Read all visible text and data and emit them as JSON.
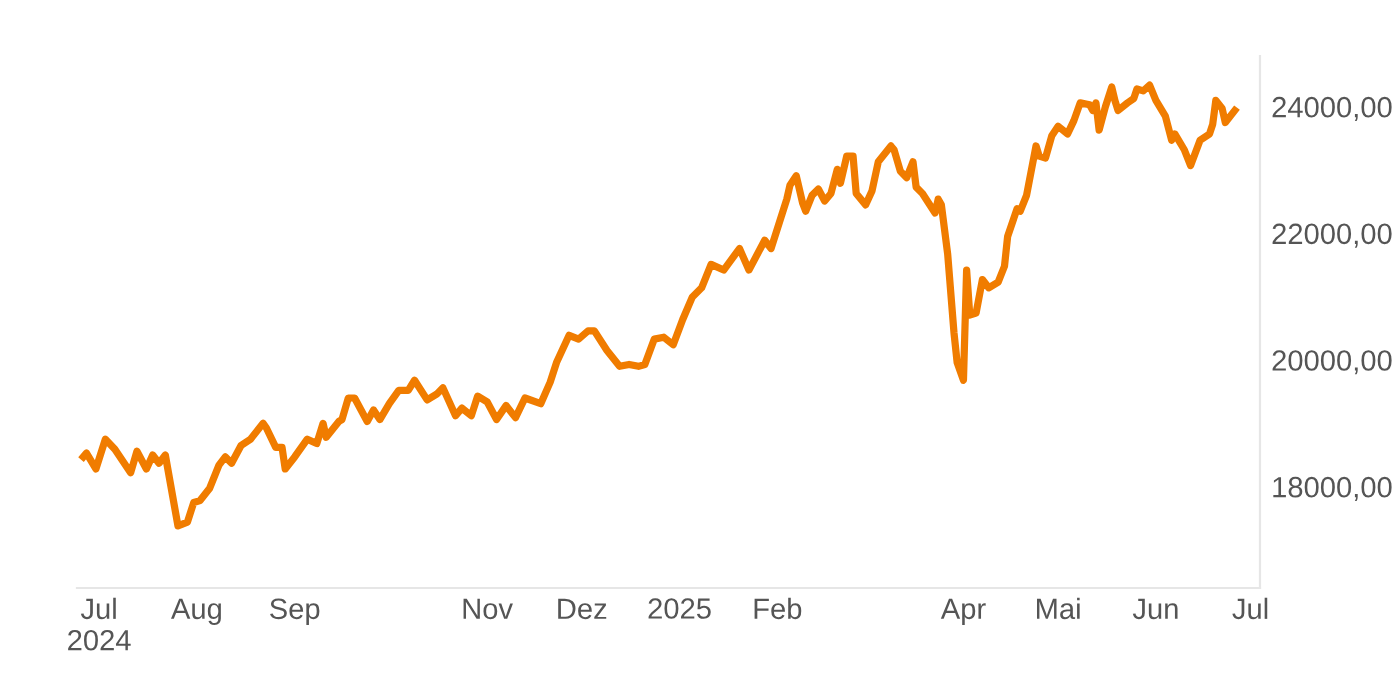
{
  "chart_data": {
    "type": "line",
    "color": "#f07c00",
    "grid": false,
    "legend": false,
    "marker": "none",
    "line_style": "solid",
    "xlim": [
      "2024-06-24",
      "2025-07-04"
    ],
    "ylim": [
      16400,
      24800
    ],
    "xticks": [
      {
        "value": "2024-07-01",
        "label": "Jul\n2024"
      },
      {
        "value": "2024-08-01",
        "label": "Aug"
      },
      {
        "value": "2024-09-01",
        "label": "Sep"
      },
      {
        "value": "2024-11-01",
        "label": "Nov"
      },
      {
        "value": "2024-12-01",
        "label": "Dez"
      },
      {
        "value": "2025-01-01",
        "label": "2025"
      },
      {
        "value": "2025-02-01",
        "label": "Feb"
      },
      {
        "value": "2025-04-01",
        "label": "Apr"
      },
      {
        "value": "2025-05-01",
        "label": "Mai"
      },
      {
        "value": "2025-06-01",
        "label": "Jun"
      },
      {
        "value": "2025-07-01",
        "label": "Jul"
      }
    ],
    "yticks": [
      {
        "value": 18000,
        "label": "18000,00"
      },
      {
        "value": 20000,
        "label": "20000,00"
      },
      {
        "value": 22000,
        "label": "22000,00"
      },
      {
        "value": 24000,
        "label": "24000,00"
      }
    ],
    "x": [
      "2024-06-26",
      "2024-06-27",
      "2024-06-30",
      "2024-07-03",
      "2024-07-06",
      "2024-07-11",
      "2024-07-13",
      "2024-07-16",
      "2024-07-18",
      "2024-07-20",
      "2024-07-22",
      "2024-07-26",
      "2024-07-29",
      "2024-07-31",
      "2024-08-02",
      "2024-08-05",
      "2024-08-08",
      "2024-08-10",
      "2024-08-12",
      "2024-08-15",
      "2024-08-18",
      "2024-08-22",
      "2024-08-23",
      "2024-08-26",
      "2024-08-28",
      "2024-08-29",
      "2024-09-01",
      "2024-09-05",
      "2024-09-08",
      "2024-09-10",
      "2024-09-11",
      "2024-09-15",
      "2024-09-16",
      "2024-09-18",
      "2024-09-20",
      "2024-09-24",
      "2024-09-26",
      "2024-09-28",
      "2024-10-01",
      "2024-10-04",
      "2024-10-07",
      "2024-10-09",
      "2024-10-13",
      "2024-10-16",
      "2024-10-18",
      "2024-10-22",
      "2024-10-24",
      "2024-10-27",
      "2024-10-29",
      "2024-11-01",
      "2024-11-04",
      "2024-11-07",
      "2024-11-10",
      "2024-11-13",
      "2024-11-18",
      "2024-11-21",
      "2024-11-23",
      "2024-11-27",
      "2024-11-30",
      "2024-12-03",
      "2024-12-05",
      "2024-12-09",
      "2024-12-13",
      "2024-12-16",
      "2024-12-19",
      "2024-12-21",
      "2024-12-24",
      "2024-12-27",
      "2024-12-30",
      "2025-01-02",
      "2025-01-05",
      "2025-01-08",
      "2025-01-11",
      "2025-01-15",
      "2025-01-20",
      "2025-01-23",
      "2025-01-28",
      "2025-01-30",
      "2025-02-04",
      "2025-02-05",
      "2025-02-07",
      "2025-02-09",
      "2025-02-10",
      "2025-02-12",
      "2025-02-14",
      "2025-02-16",
      "2025-02-18",
      "2025-02-20",
      "2025-02-21",
      "2025-02-23",
      "2025-02-25",
      "2025-02-26",
      "2025-03-01",
      "2025-03-03",
      "2025-03-05",
      "2025-03-09",
      "2025-03-10",
      "2025-03-12",
      "2025-03-14",
      "2025-03-16",
      "2025-03-17",
      "2025-03-19",
      "2025-03-23",
      "2025-03-24",
      "2025-03-25",
      "2025-03-27",
      "2025-03-29",
      "2025-03-30",
      "2025-04-01",
      "2025-04-02",
      "2025-04-03",
      "2025-04-05",
      "2025-04-07",
      "2025-04-09",
      "2025-04-12",
      "2025-04-14",
      "2025-04-15",
      "2025-04-18",
      "2025-04-19",
      "2025-04-21",
      "2025-04-24",
      "2025-04-25",
      "2025-04-27",
      "2025-04-29",
      "2025-05-01",
      "2025-05-04",
      "2025-05-06",
      "2025-05-08",
      "2025-05-11",
      "2025-05-12",
      "2025-05-13",
      "2025-05-14",
      "2025-05-16",
      "2025-05-18",
      "2025-05-19",
      "2025-05-20",
      "2025-05-23",
      "2025-05-25",
      "2025-05-26",
      "2025-05-28",
      "2025-05-30",
      "2025-06-01",
      "2025-06-04",
      "2025-06-06",
      "2025-06-07",
      "2025-06-10",
      "2025-06-12",
      "2025-06-15",
      "2025-06-18",
      "2025-06-19",
      "2025-06-20",
      "2025-06-22",
      "2025-06-23",
      "2025-06-26"
    ],
    "values": [
      18470,
      18530,
      18280,
      18750,
      18590,
      18220,
      18560,
      18280,
      18500,
      18370,
      18500,
      17380,
      17440,
      17750,
      17780,
      17970,
      18340,
      18470,
      18370,
      18650,
      18750,
      19000,
      18930,
      18620,
      18620,
      18280,
      18470,
      18750,
      18680,
      19000,
      18780,
      19030,
      19060,
      19400,
      19400,
      19030,
      19210,
      19060,
      19310,
      19520,
      19520,
      19680,
      19370,
      19460,
      19560,
      19120,
      19240,
      19120,
      19430,
      19340,
      19060,
      19280,
      19090,
      19400,
      19310,
      19650,
      19960,
      20390,
      20330,
      20460,
      20460,
      20150,
      19900,
      19930,
      19900,
      19930,
      20330,
      20360,
      20240,
      20640,
      20990,
      21140,
      21510,
      21420,
      21760,
      21420,
      21890,
      21760,
      22540,
      22760,
      22910,
      22480,
      22350,
      22600,
      22700,
      22510,
      22630,
      23010,
      22790,
      23220,
      23220,
      22630,
      22450,
      22670,
      23130,
      23380,
      23320,
      22980,
      22880,
      23130,
      22730,
      22630,
      22320,
      22540,
      22450,
      21670,
      20430,
      19960,
      19680,
      21420,
      20710,
      20740,
      21270,
      21140,
      21230,
      21480,
      21950,
      22390,
      22350,
      22600,
      23380,
      23220,
      23190,
      23540,
      23690,
      23570,
      23780,
      24060,
      24030,
      23940,
      24060,
      23630,
      24000,
      24310,
      24100,
      23940,
      24060,
      24130,
      24280,
      24250,
      24340,
      24100,
      23850,
      23470,
      23570,
      23320,
      23070,
      23470,
      23570,
      23720,
      24100,
      23970,
      23750,
      23940
    ]
  }
}
